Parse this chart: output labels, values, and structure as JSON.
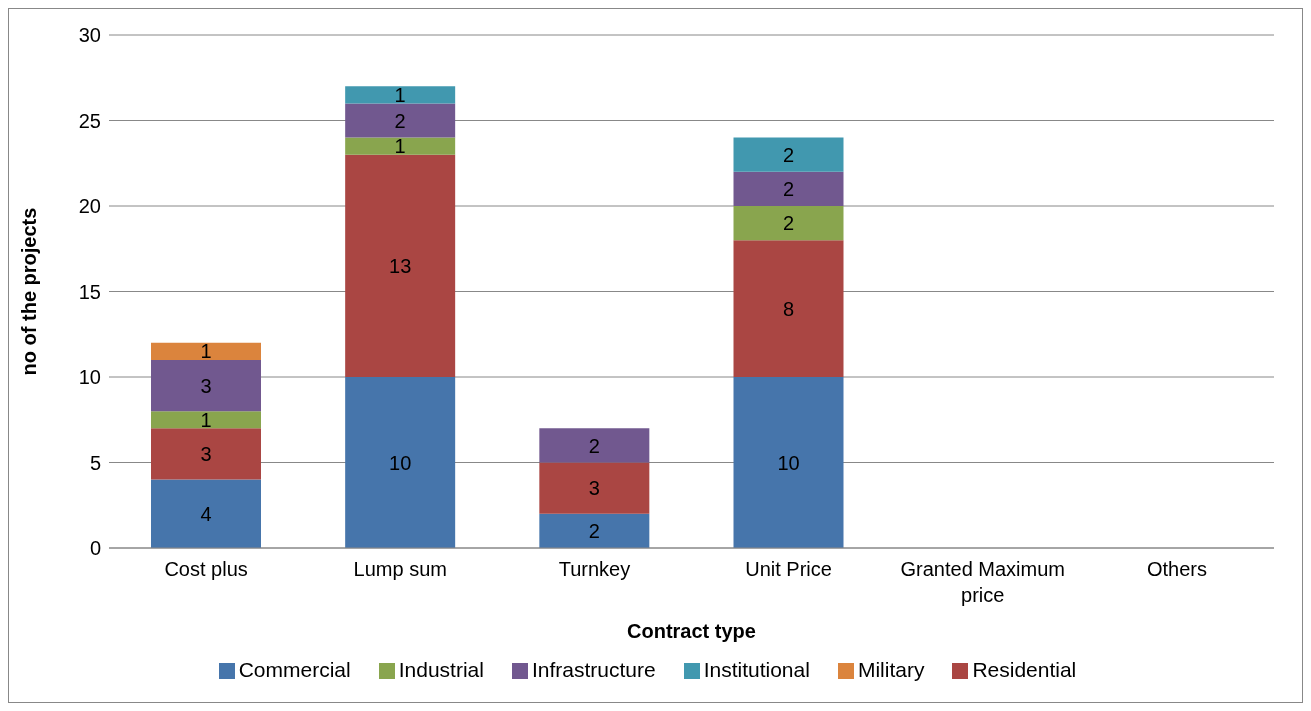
{
  "chart_data": {
    "type": "bar",
    "stacked": true,
    "xlabel": "Contract type",
    "ylabel": "no of the projects",
    "categories": [
      "Cost plus",
      "Lump sum",
      "Turnkey",
      "Unit Price",
      "Granted Maximum price",
      "Others"
    ],
    "series": [
      {
        "name": "Commercial",
        "color": "#4675ab",
        "values": [
          4,
          10,
          2,
          10,
          null,
          null
        ]
      },
      {
        "name": "Residential",
        "color": "#aa4643",
        "values": [
          3,
          13,
          3,
          8,
          null,
          null
        ]
      },
      {
        "name": "Industrial",
        "color": "#89a54e",
        "values": [
          1,
          1,
          null,
          2,
          null,
          null
        ]
      },
      {
        "name": "Infrastructure",
        "color": "#71588f",
        "values": [
          3,
          2,
          2,
          2,
          null,
          null
        ]
      },
      {
        "name": "Institutional",
        "color": "#4198af",
        "values": [
          null,
          1,
          null,
          2,
          null,
          null
        ]
      },
      {
        "name": "Military",
        "color": "#db843d",
        "values": [
          1,
          null,
          null,
          null,
          null,
          null
        ]
      }
    ],
    "ylim": [
      0,
      30
    ],
    "yticks": [
      0,
      5,
      10,
      15,
      20,
      25,
      30
    ],
    "grid": "y",
    "legend": "bottom",
    "data_labels": true
  }
}
